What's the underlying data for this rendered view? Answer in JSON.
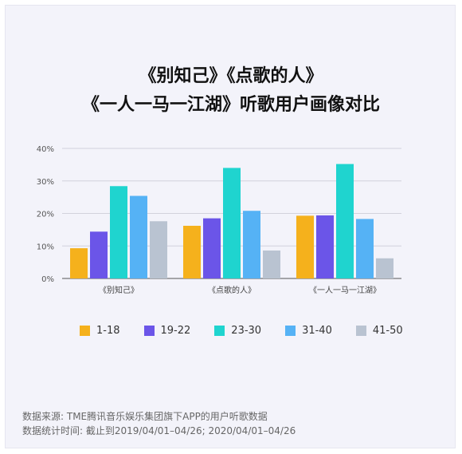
{
  "title_line1": "《别知己》《点歌的人》",
  "title_line2": "《一人一马一江湖》听歌用户画像对比",
  "footer": {
    "source": "数据来源: TME腾讯音乐娱乐集团旗下APP的用户听歌数据",
    "period": "数据统计时间: 截止到2019/04/01–04/26; 2020/04/01–04/26"
  },
  "chart_data": {
    "type": "bar",
    "categories": [
      "《别知己》",
      "《点歌的人》",
      "《一人一马一江湖》"
    ],
    "series": [
      {
        "name": "1-18",
        "color": "#f5b11c",
        "values": [
          9.3,
          16.2,
          19.3
        ]
      },
      {
        "name": "19-22",
        "color": "#6b55e8",
        "values": [
          14.4,
          18.5,
          19.4
        ]
      },
      {
        "name": "23-30",
        "color": "#1fd4cf",
        "values": [
          28.4,
          34.0,
          35.2
        ]
      },
      {
        "name": "31-40",
        "color": "#55b2f5",
        "values": [
          25.4,
          20.8,
          18.3
        ]
      },
      {
        "name": "41-50",
        "color": "#b9c3d1",
        "values": [
          17.6,
          8.6,
          6.2
        ]
      }
    ],
    "yticks": [
      "0%",
      "10%",
      "20%",
      "30%",
      "40%"
    ],
    "ylim": [
      0,
      40
    ],
    "grid": true,
    "legend_position": "bottom"
  }
}
